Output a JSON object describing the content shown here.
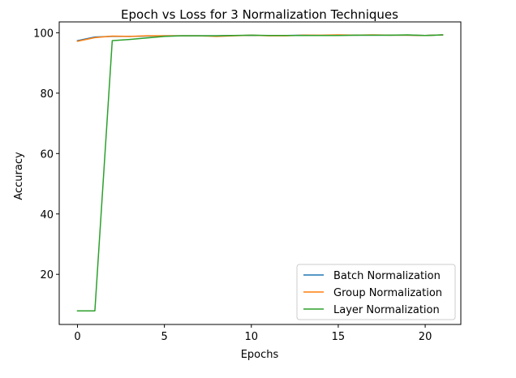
{
  "chart_data": {
    "type": "line",
    "title": "Epoch vs Loss for 3 Normalization Techniques",
    "xlabel": "Epochs",
    "ylabel": "Accuracy",
    "xlim": [
      -1.05,
      22.05
    ],
    "ylim": [
      3.4,
      103.6
    ],
    "xticks": [
      0,
      5,
      10,
      15,
      20
    ],
    "yticks": [
      20,
      40,
      60,
      80,
      100
    ],
    "grid": false,
    "legend_position": "lower right",
    "x": [
      0,
      1,
      2,
      3,
      4,
      5,
      6,
      7,
      8,
      9,
      10,
      11,
      12,
      13,
      14,
      15,
      16,
      17,
      18,
      19,
      20,
      21
    ],
    "series": [
      {
        "name": "Batch Normalization",
        "color": "#1f77b4",
        "values": [
          97.4,
          98.6,
          98.8,
          98.8,
          98.9,
          99.0,
          99.0,
          99.0,
          99.0,
          99.1,
          99.1,
          99.1,
          99.1,
          99.2,
          99.1,
          99.2,
          99.2,
          99.2,
          99.2,
          99.2,
          99.1,
          99.3
        ]
      },
      {
        "name": "Group Normalization",
        "color": "#ff7f0e",
        "values": [
          97.2,
          98.4,
          98.9,
          98.8,
          99.0,
          99.0,
          99.0,
          99.0,
          98.8,
          99.0,
          99.2,
          99.0,
          99.0,
          99.2,
          99.2,
          99.3,
          99.2,
          99.3,
          99.2,
          99.2,
          99.1,
          99.3
        ]
      },
      {
        "name": "Layer Normalization",
        "color": "#2ca02c",
        "values": [
          7.9,
          7.9,
          97.4,
          97.8,
          98.3,
          98.8,
          99.0,
          99.0,
          99.0,
          99.1,
          99.2,
          99.1,
          99.1,
          99.1,
          99.1,
          99.1,
          99.2,
          99.2,
          99.2,
          99.3,
          99.1,
          99.3
        ]
      }
    ]
  }
}
